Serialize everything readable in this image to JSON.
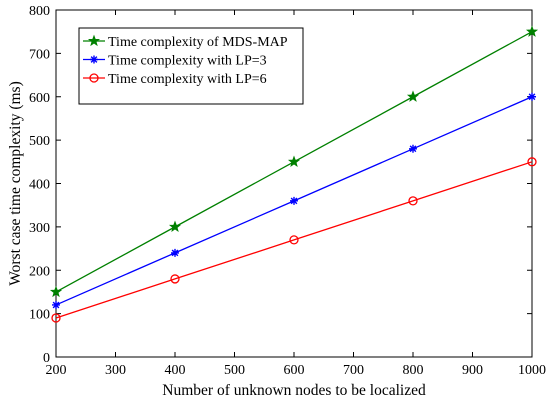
{
  "chart_data": {
    "type": "line",
    "xlabel": "Number of unknown nodes to be localized",
    "ylabel": "Worst case time complexity (ms)",
    "xlim": [
      200,
      1000
    ],
    "ylim": [
      0,
      800
    ],
    "xticks": [
      200,
      300,
      400,
      500,
      600,
      700,
      800,
      900,
      1000
    ],
    "yticks": [
      0,
      100,
      200,
      300,
      400,
      500,
      600,
      700,
      800
    ],
    "grid": false,
    "legend_position": "top-left",
    "x": [
      200,
      400,
      600,
      800,
      1000
    ],
    "series": [
      {
        "name": "Time complexity of MDS-MAP",
        "values": [
          150,
          300,
          450,
          600,
          750
        ],
        "color": "#008000",
        "marker": "star"
      },
      {
        "name": "Time complexity with LP=3",
        "values": [
          120,
          240,
          360,
          480,
          600
        ],
        "color": "#0000ff",
        "marker": "asterisk"
      },
      {
        "name": "Time complexity with LP=6",
        "values": [
          90,
          180,
          270,
          360,
          450
        ],
        "color": "#ff0000",
        "marker": "circle"
      }
    ]
  }
}
